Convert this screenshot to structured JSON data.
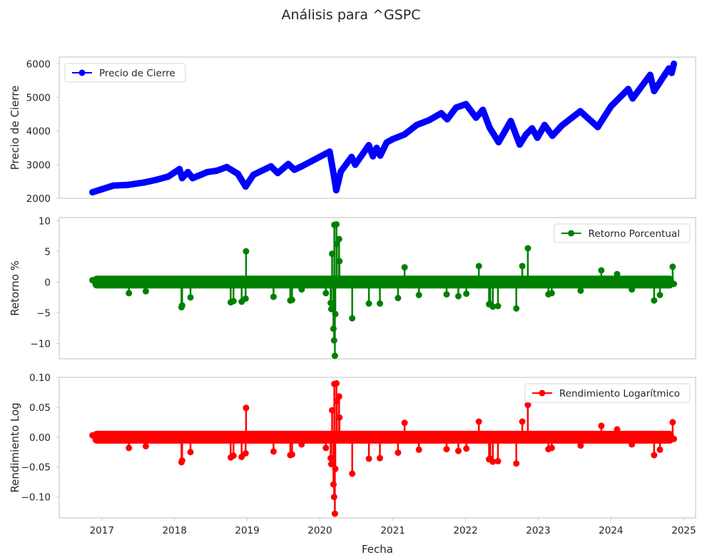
{
  "figure": {
    "title": "Análisis para ^GSPC",
    "xlabel": "Fecha"
  },
  "chart_data": [
    {
      "type": "line",
      "ylabel": "Precio de Cierre",
      "ylim": [
        2000,
        6200
      ],
      "yticks": [
        2000,
        3000,
        4000,
        5000,
        6000
      ],
      "ytick_labels": [
        "2000",
        "3000",
        "4000",
        "5000",
        "6000"
      ],
      "xlim": [
        "2016-06-01",
        "2025-03-01"
      ],
      "xticks": [
        "2017-01-01",
        "2018-01-01",
        "2019-01-01",
        "2020-01-01",
        "2021-01-01",
        "2022-01-01",
        "2023-01-01",
        "2024-01-01",
        "2025-01-01"
      ],
      "legend_position": "upper-left",
      "grid": false,
      "series": [
        {
          "name": "Precio de Cierre",
          "color": "#0000ff",
          "marker": "circle",
          "x": [
            "2016-11-15",
            "2017-01-01",
            "2017-03-01",
            "2017-05-15",
            "2017-08-01",
            "2017-10-01",
            "2017-12-01",
            "2018-01-26",
            "2018-02-08",
            "2018-03-09",
            "2018-04-02",
            "2018-06-15",
            "2018-08-01",
            "2018-09-20",
            "2018-11-15",
            "2018-12-24",
            "2019-02-01",
            "2019-04-30",
            "2019-06-03",
            "2019-07-26",
            "2019-08-26",
            "2019-10-01",
            "2019-12-01",
            "2020-02-19",
            "2020-03-09",
            "2020-03-23",
            "2020-04-15",
            "2020-06-08",
            "2020-06-26",
            "2020-09-02",
            "2020-09-23",
            "2020-10-12",
            "2020-10-30",
            "2020-12-01",
            "2021-01-01",
            "2021-03-01",
            "2021-05-01",
            "2021-07-01",
            "2021-09-01",
            "2021-10-01",
            "2021-11-15",
            "2022-01-03",
            "2022-02-23",
            "2022-03-29",
            "2022-05-02",
            "2022-06-16",
            "2022-08-16",
            "2022-09-30",
            "2022-11-01",
            "2022-12-01",
            "2022-12-28",
            "2023-02-02",
            "2023-03-13",
            "2023-05-01",
            "2023-07-31",
            "2023-10-27",
            "2024-01-02",
            "2024-03-28",
            "2024-04-19",
            "2024-07-16",
            "2024-08-05",
            "2024-10-18",
            "2024-11-01",
            "2024-11-12"
          ],
          "y": [
            2180,
            2270,
            2380,
            2400,
            2470,
            2550,
            2650,
            2870,
            2600,
            2780,
            2600,
            2780,
            2820,
            2930,
            2730,
            2350,
            2700,
            2950,
            2750,
            3020,
            2850,
            2950,
            3140,
            3390,
            2750,
            2240,
            2800,
            3230,
            3000,
            3580,
            3250,
            3500,
            3270,
            3660,
            3760,
            3900,
            4180,
            4320,
            4530,
            4350,
            4700,
            4800,
            4400,
            4630,
            4100,
            3670,
            4300,
            3600,
            3900,
            4080,
            3800,
            4180,
            3860,
            4170,
            4590,
            4120,
            4740,
            5250,
            4970,
            5670,
            5190,
            5860,
            5730,
            6000
          ]
        }
      ]
    },
    {
      "type": "line",
      "ylabel": "Retorno %",
      "ylim": [
        -12.5,
        10.5
      ],
      "yticks": [
        10,
        5,
        0,
        -5,
        -10
      ],
      "ytick_labels": [
        "10",
        "5",
        "0",
        "−5",
        "−10"
      ],
      "xlim": [
        "2016-06-01",
        "2025-03-01"
      ],
      "legend_position": "upper-right",
      "grid": false,
      "series": [
        {
          "name": "Retorno Porcentual",
          "color": "#008000",
          "marker": "circle",
          "x": [
            "2016-11-15",
            "2017-03-01",
            "2017-05-17",
            "2017-08-10",
            "2017-11-01",
            "2018-02-05",
            "2018-02-08",
            "2018-03-22",
            "2018-06-15",
            "2018-10-10",
            "2018-10-24",
            "2018-12-04",
            "2018-12-24",
            "2018-12-26",
            "2019-03-01",
            "2019-05-13",
            "2019-08-05",
            "2019-08-14",
            "2019-10-01",
            "2020-01-31",
            "2020-02-24",
            "2020-02-27",
            "2020-03-02",
            "2020-03-09",
            "2020-03-12",
            "2020-03-13",
            "2020-03-16",
            "2020-03-18",
            "2020-03-24",
            "2020-03-26",
            "2020-04-06",
            "2020-04-08",
            "2020-06-11",
            "2020-09-03",
            "2020-10-28",
            "2021-01-27",
            "2021-03-01",
            "2021-05-12",
            "2021-09-28",
            "2021-11-26",
            "2022-01-05",
            "2022-03-09",
            "2022-04-29",
            "2022-05-05",
            "2022-05-18",
            "2022-06-13",
            "2022-09-13",
            "2022-10-13",
            "2022-11-10",
            "2023-02-21",
            "2023-03-10",
            "2023-05-01",
            "2023-08-02",
            "2023-11-14",
            "2024-02-01",
            "2024-04-15",
            "2024-08-05",
            "2024-09-03",
            "2024-11-06",
            "2024-11-12"
          ],
          "y": [
            0.3,
            0.5,
            -1.8,
            -1.5,
            0.4,
            -4.1,
            -3.8,
            -2.5,
            0.4,
            -3.3,
            -3.1,
            -3.2,
            -2.7,
            5.0,
            0.2,
            -2.4,
            -3.0,
            -2.9,
            -1.2,
            -1.8,
            -3.4,
            -4.4,
            4.6,
            -7.6,
            -9.5,
            9.3,
            -12.0,
            -5.2,
            9.4,
            6.2,
            7.0,
            3.4,
            -5.9,
            -3.5,
            -3.5,
            -2.6,
            2.4,
            -2.1,
            -2.0,
            -2.3,
            -1.9,
            2.6,
            -3.6,
            -3.6,
            -4.0,
            -3.9,
            -4.3,
            2.6,
            5.5,
            -2.0,
            -1.8,
            0.3,
            -1.4,
            1.9,
            1.3,
            -1.2,
            -3.0,
            -2.1,
            2.5,
            -0.3
          ]
        }
      ]
    },
    {
      "type": "line",
      "ylabel": "Rendimiento Log",
      "ylim": [
        -0.135,
        0.1
      ],
      "yticks": [
        0.1,
        0.05,
        0.0,
        -0.05,
        -0.1
      ],
      "ytick_labels": [
        "0.10",
        "0.05",
        "0.00",
        "−0.05",
        "−0.10"
      ],
      "xlim": [
        "2016-06-01",
        "2025-03-01"
      ],
      "legend_position": "upper-right",
      "grid": false,
      "series": [
        {
          "name": "Rendimiento Logarítmico",
          "color": "#ff0000",
          "marker": "circle",
          "x": [
            "2016-11-15",
            "2017-03-01",
            "2017-05-17",
            "2017-08-10",
            "2017-11-01",
            "2018-02-05",
            "2018-02-08",
            "2018-03-22",
            "2018-06-15",
            "2018-10-10",
            "2018-10-24",
            "2018-12-04",
            "2018-12-24",
            "2018-12-26",
            "2019-03-01",
            "2019-05-13",
            "2019-08-05",
            "2019-08-14",
            "2019-10-01",
            "2020-01-31",
            "2020-02-24",
            "2020-02-27",
            "2020-03-02",
            "2020-03-09",
            "2020-03-12",
            "2020-03-13",
            "2020-03-16",
            "2020-03-18",
            "2020-03-24",
            "2020-03-26",
            "2020-04-06",
            "2020-04-08",
            "2020-06-11",
            "2020-09-03",
            "2020-10-28",
            "2021-01-27",
            "2021-03-01",
            "2021-05-12",
            "2021-09-28",
            "2021-11-26",
            "2022-01-05",
            "2022-03-09",
            "2022-04-29",
            "2022-05-05",
            "2022-05-18",
            "2022-06-13",
            "2022-09-13",
            "2022-10-13",
            "2022-11-10",
            "2023-02-21",
            "2023-03-10",
            "2023-05-01",
            "2023-08-02",
            "2023-11-14",
            "2024-02-01",
            "2024-04-15",
            "2024-08-05",
            "2024-09-03",
            "2024-11-06",
            "2024-11-12"
          ],
          "y": [
            0.003,
            0.005,
            -0.018,
            -0.015,
            0.004,
            -0.042,
            -0.039,
            -0.025,
            0.004,
            -0.034,
            -0.031,
            -0.033,
            -0.027,
            0.049,
            0.002,
            -0.024,
            -0.03,
            -0.029,
            -0.012,
            -0.018,
            -0.035,
            -0.045,
            0.045,
            -0.079,
            -0.1,
            0.089,
            -0.128,
            -0.053,
            0.09,
            0.06,
            0.068,
            0.033,
            -0.061,
            -0.036,
            -0.035,
            -0.026,
            0.024,
            -0.021,
            -0.02,
            -0.023,
            -0.019,
            0.026,
            -0.037,
            -0.036,
            -0.041,
            -0.04,
            -0.044,
            0.026,
            0.054,
            -0.02,
            -0.018,
            0.003,
            -0.014,
            0.019,
            0.013,
            -0.012,
            -0.03,
            -0.021,
            0.025,
            -0.003
          ]
        }
      ]
    }
  ],
  "x_tick_labels": [
    "2017",
    "2018",
    "2019",
    "2020",
    "2021",
    "2022",
    "2023",
    "2024",
    "2025"
  ]
}
